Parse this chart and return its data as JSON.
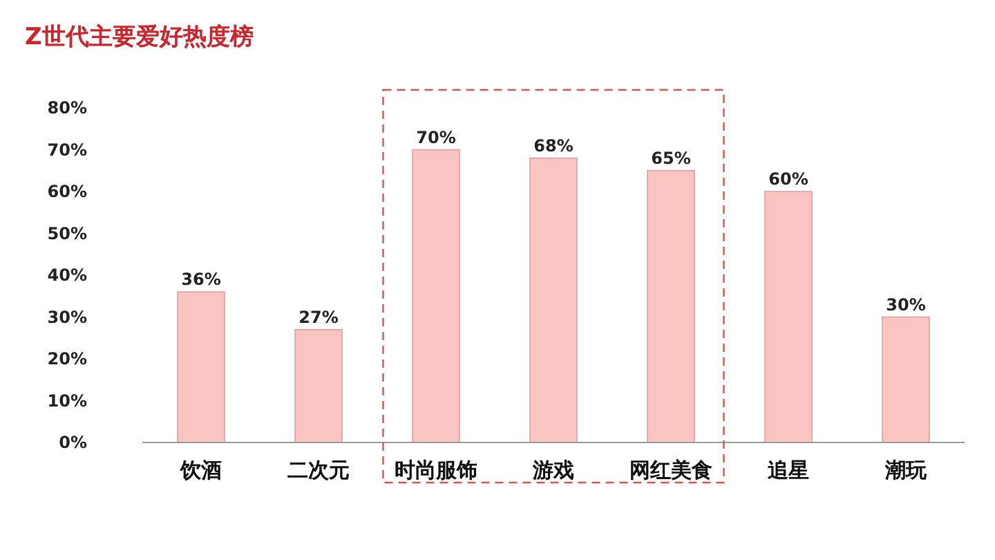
{
  "chart_data": {
    "type": "bar",
    "title": "Z世代主要爱好热度榜",
    "categories": [
      "饮酒",
      "二次元",
      "时尚服饰",
      "游戏",
      "网红美食",
      "追星",
      "潮玩"
    ],
    "values": [
      36,
      27,
      70,
      68,
      65,
      60,
      30
    ],
    "value_labels": [
      "36%",
      "27%",
      "70%",
      "68%",
      "65%",
      "60%",
      "30%"
    ],
    "color": "#f9c4c2",
    "ylim": [
      0,
      80
    ],
    "yticks": [
      {
        "value": 0,
        "label": "0%"
      },
      {
        "value": 10,
        "label": "10%"
      },
      {
        "value": 20,
        "label": "20%"
      },
      {
        "value": 30,
        "label": "30%"
      },
      {
        "value": 40,
        "label": "40%"
      },
      {
        "value": 50,
        "label": "50%"
      },
      {
        "value": 60,
        "label": "60%"
      },
      {
        "value": 70,
        "label": "70%"
      },
      {
        "value": 80,
        "label": "80%"
      }
    ],
    "grid": false
  }
}
